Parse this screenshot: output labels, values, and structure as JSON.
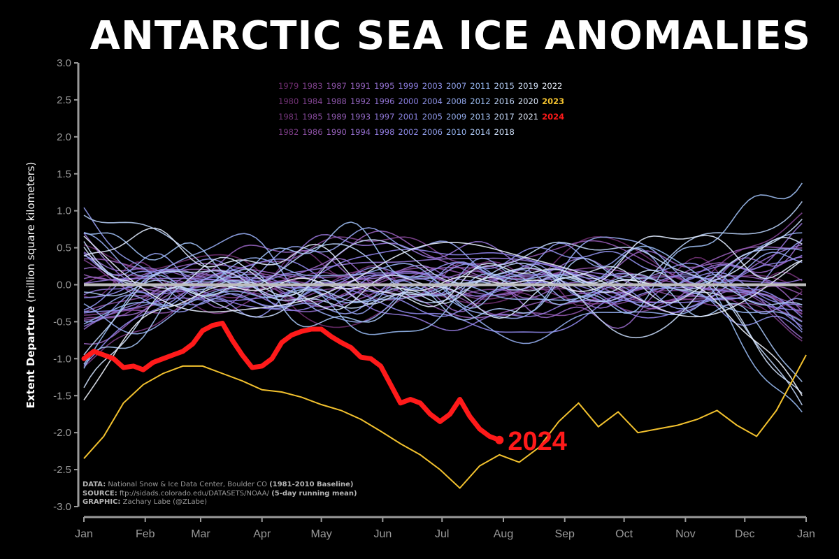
{
  "title": "ANTARCTIC SEA ICE ANOMALIES",
  "credits": {
    "data_label": "DATA:",
    "data_text": "National Snow & Ice Data Center, Boulder CO",
    "data_extra": "(1981-2010 Baseline)",
    "source_label": "SOURCE:",
    "source_text": "ftp://sidads.colorado.edu/DATASETS/NOAA/",
    "source_extra": "(5-day running mean)",
    "graphic_label": "GRAPHIC:",
    "graphic_text": "Zachary Labe (@ZLabe)"
  },
  "colors": {
    "background": "#000000",
    "highlight_2024": "#ff1a1a",
    "highlight_2023": "#f2c12e",
    "zero_line": "#bdbdbd",
    "axis": "#9a9a9a"
  },
  "chart_data": {
    "type": "line",
    "ylabel_bold": "Extent Departure",
    "ylabel_rest": "(million square kilometers)",
    "ylim": [
      -3.0,
      3.0
    ],
    "xlim": [
      0,
      365
    ],
    "yticks": [
      "3.0",
      "2.5",
      "2.0",
      "1.5",
      "1.0",
      "0.5",
      "0.0",
      "-0.5",
      "-1.0",
      "-1.5",
      "-2.0",
      "-2.5",
      "-3.0"
    ],
    "ytick_values": [
      3.0,
      2.5,
      2.0,
      1.5,
      1.0,
      0.5,
      0.0,
      -0.5,
      -1.0,
      -1.5,
      -2.0,
      -2.5,
      -3.0
    ],
    "xticks": [
      "Jan",
      "Feb",
      "Mar",
      "Apr",
      "May",
      "Jun",
      "Jul",
      "Aug",
      "Sep",
      "Oct",
      "Nov",
      "Dec",
      "Jan"
    ],
    "xtick_days": [
      0,
      31,
      59,
      90,
      120,
      151,
      181,
      212,
      243,
      273,
      304,
      334,
      365
    ],
    "grid": false,
    "legend_position": "top-center",
    "legend_columns": [
      [
        "1979",
        "1980",
        "1981",
        "1982"
      ],
      [
        "1983",
        "1984",
        "1985",
        "1986"
      ],
      [
        "1987",
        "1988",
        "1989",
        "1990"
      ],
      [
        "1991",
        "1992",
        "1993",
        "1994"
      ],
      [
        "1995",
        "1996",
        "1997",
        "1998"
      ],
      [
        "1999",
        "2000",
        "2001",
        "2002"
      ],
      [
        "2003",
        "2004",
        "2005",
        "2006"
      ],
      [
        "2007",
        "2008",
        "2009",
        "2010"
      ],
      [
        "2011",
        "2012",
        "2013",
        "2014"
      ],
      [
        "2015",
        "2016",
        "2017",
        "2018"
      ],
      [
        "2019",
        "2020",
        "2021"
      ],
      [
        "2022",
        "2023",
        "2024"
      ]
    ],
    "annotation": "2024",
    "series_2024": {
      "name": "2024",
      "x": [
        0,
        5,
        10,
        15,
        20,
        25,
        30,
        35,
        40,
        45,
        50,
        55,
        60,
        65,
        70,
        75,
        80,
        85,
        90,
        95,
        100,
        105,
        110,
        115,
        120,
        125,
        130,
        135,
        140,
        145,
        150,
        155,
        160,
        165,
        170,
        175,
        180,
        185,
        190,
        195,
        200,
        205,
        210
      ],
      "y": [
        -1.0,
        -0.9,
        -0.95,
        -1.0,
        -1.12,
        -1.1,
        -1.15,
        -1.05,
        -1.0,
        -0.95,
        -0.9,
        -0.8,
        -0.62,
        -0.55,
        -0.52,
        -0.75,
        -0.95,
        -1.12,
        -1.1,
        -1.0,
        -0.78,
        -0.68,
        -0.63,
        -0.6,
        -0.6,
        -0.7,
        -0.78,
        -0.85,
        -0.98,
        -1.0,
        -1.1,
        -1.35,
        -1.6,
        -1.55,
        -1.6,
        -1.75,
        -1.85,
        -1.75,
        -1.55,
        -1.78,
        -1.95,
        -2.05,
        -2.1
      ]
    },
    "series_2023": {
      "name": "2023",
      "x": [
        0,
        10,
        20,
        30,
        40,
        50,
        60,
        70,
        80,
        90,
        100,
        110,
        120,
        130,
        140,
        150,
        160,
        170,
        180,
        190,
        200,
        210,
        220,
        230,
        240,
        250,
        260,
        270,
        280,
        290,
        300,
        310,
        320,
        330,
        340,
        350,
        360,
        365
      ],
      "y": [
        -2.35,
        -2.05,
        -1.6,
        -1.35,
        -1.2,
        -1.1,
        -1.1,
        -1.2,
        -1.3,
        -1.42,
        -1.45,
        -1.52,
        -1.62,
        -1.7,
        -1.82,
        -1.98,
        -2.15,
        -2.3,
        -2.5,
        -2.75,
        -2.45,
        -2.3,
        -2.4,
        -2.2,
        -1.85,
        -1.6,
        -1.92,
        -1.72,
        -2.0,
        -1.95,
        -1.9,
        -1.82,
        -1.7,
        -1.9,
        -2.05,
        -1.7,
        -1.2,
        -0.95
      ]
    }
  }
}
